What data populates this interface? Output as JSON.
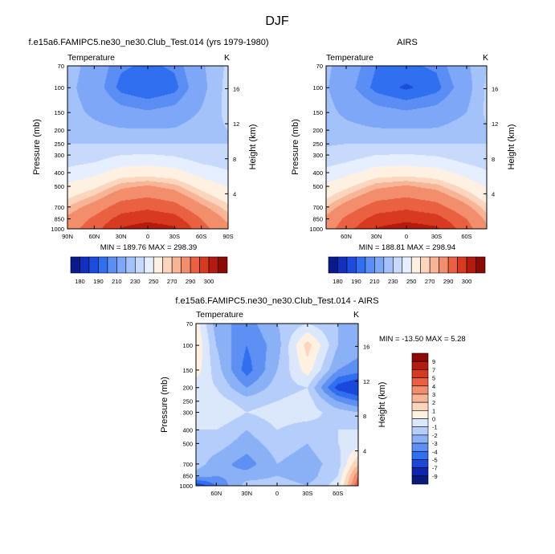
{
  "title": "DJF",
  "panels": [
    {
      "title": "f.e15a6.FAMIPC5.ne30_ne30.Club_Test.014 (yrs 1979-1980)",
      "left_label": "Temperature",
      "units": "K",
      "minmax": "MIN = 189.76  MAX = 298.39"
    },
    {
      "title": "AIRS",
      "left_label": "Temperature",
      "units": "K",
      "minmax": "MIN = 188.81  MAX = 298.94"
    },
    {
      "title": "f.e15a6.FAMIPC5.ne30_ne30.Club_Test.014 - AIRS",
      "left_label": "Temperature",
      "units": "K",
      "minmax": "MIN = -13.50  MAX =   5.28"
    }
  ],
  "chart_data": [
    {
      "type": "heatmap",
      "title": "f.e15a6.FAMIPC5.ne30_ne30.Club_Test.014 (yrs 1979-1980)",
      "variable": "Temperature",
      "units": "K",
      "xlabel": "",
      "ylabel": "Pressure (mb)",
      "y2label": "Height (km)",
      "x_ticks": [
        "90N",
        "60N",
        "30N",
        "0",
        "30S",
        "60S",
        "90S"
      ],
      "y_ticks": [
        "70",
        "100",
        "150",
        "200",
        "250",
        "300",
        "400",
        "500",
        "700",
        "850",
        "1000"
      ],
      "y2_ticks": [
        "4",
        "8",
        "12",
        "16"
      ],
      "ylim": [
        1000,
        70
      ],
      "x": [
        90,
        60,
        30,
        0,
        -30,
        -60,
        -90
      ],
      "y": [
        70,
        100,
        150,
        200,
        250,
        300,
        400,
        500,
        700,
        850,
        1000
      ],
      "z": [
        [
          215,
          205,
          196,
          194,
          196,
          208,
          222
        ],
        [
          213,
          204,
          193,
          190,
          193,
          206,
          224
        ],
        [
          214,
          208,
          203,
          201,
          203,
          211,
          223
        ],
        [
          217,
          213,
          211,
          211,
          211,
          216,
          220
        ],
        [
          220,
          220,
          220,
          220,
          220,
          220,
          220
        ],
        [
          223,
          225,
          230,
          231,
          229,
          224,
          223
        ],
        [
          233,
          237,
          245,
          246,
          244,
          236,
          231
        ],
        [
          242,
          248,
          258,
          261,
          257,
          247,
          239
        ],
        [
          255,
          264,
          275,
          278,
          274,
          262,
          252
        ],
        [
          262,
          272,
          284,
          287,
          284,
          270,
          258
        ],
        [
          265,
          276,
          291,
          296,
          292,
          274,
          262
        ]
      ],
      "min": 189.76,
      "max": 298.39,
      "colorbar": {
        "labels": [
          "180",
          "190",
          "210",
          "230",
          "250",
          "270",
          "290",
          "300"
        ]
      }
    },
    {
      "type": "heatmap",
      "title": "AIRS",
      "variable": "Temperature",
      "units": "K",
      "xlabel": "",
      "ylabel": "Pressure (mb)",
      "y2label": "Height (km)",
      "x_ticks": [
        "60N",
        "30N",
        "0",
        "30S",
        "60S"
      ],
      "y_ticks": [
        "70",
        "100",
        "150",
        "200",
        "250",
        "300",
        "400",
        "500",
        "700",
        "850",
        "1000"
      ],
      "y2_ticks": [
        "4",
        "8",
        "12",
        "16"
      ],
      "ylim": [
        1000,
        70
      ],
      "x": [
        80,
        60,
        30,
        0,
        -30,
        -60,
        -80
      ],
      "y": [
        70,
        100,
        150,
        200,
        250,
        300,
        400,
        500,
        700,
        850,
        1000
      ],
      "z": [
        [
          212,
          205,
          195,
          194,
          196,
          208,
          220
        ],
        [
          211,
          203,
          193,
          189,
          193,
          205,
          222
        ],
        [
          213,
          208,
          203,
          201,
          203,
          210,
          222
        ],
        [
          216,
          213,
          211,
          211,
          211,
          215,
          219
        ],
        [
          219,
          220,
          220,
          220,
          220,
          220,
          220
        ],
        [
          223,
          225,
          230,
          231,
          229,
          224,
          223
        ],
        [
          233,
          237,
          245,
          246,
          244,
          236,
          231
        ],
        [
          242,
          248,
          258,
          261,
          257,
          247,
          239
        ],
        [
          255,
          264,
          275,
          278,
          274,
          262,
          252
        ],
        [
          262,
          272,
          284,
          287,
          284,
          270,
          258
        ],
        [
          265,
          276,
          291,
          296,
          292,
          274,
          262
        ]
      ],
      "min": 188.81,
      "max": 298.94,
      "colorbar": {
        "labels": [
          "180",
          "190",
          "210",
          "230",
          "250",
          "270",
          "290",
          "300"
        ]
      }
    },
    {
      "type": "heatmap",
      "title": "f.e15a6.FAMIPC5.ne30_ne30.Club_Test.014 - AIRS",
      "variable": "Temperature",
      "units": "K",
      "xlabel": "",
      "ylabel": "Pressure (mb)",
      "y2label": "Height (km)",
      "x_ticks": [
        "60N",
        "30N",
        "0",
        "30S",
        "60S"
      ],
      "y_ticks": [
        "70",
        "100",
        "150",
        "200",
        "250",
        "300",
        "400",
        "500",
        "700",
        "850",
        "1000"
      ],
      "y2_ticks": [
        "4",
        "8",
        "12",
        "16"
      ],
      "ylim": [
        1000,
        70
      ],
      "x": [
        80,
        60,
        30,
        0,
        -30,
        -60,
        -80
      ],
      "y": [
        70,
        100,
        150,
        200,
        250,
        300,
        400,
        500,
        700,
        850,
        1000
      ],
      "z": [
        [
          0.5,
          -2.5,
          -3.5,
          -2.0,
          -1.0,
          -2.0,
          -2.0
        ],
        [
          1.0,
          -2.0,
          -4.0,
          -2.5,
          1.5,
          -2.0,
          -2.5
        ],
        [
          0.5,
          -1.5,
          -4.5,
          -2.0,
          0.5,
          -3.0,
          -3.5
        ],
        [
          -0.5,
          -1.0,
          -3.0,
          -1.5,
          -1.0,
          -5.5,
          -6.5
        ],
        [
          -0.5,
          -0.5,
          -1.5,
          -1.0,
          -0.5,
          -3.0,
          -4.0
        ],
        [
          -0.5,
          0.0,
          -1.0,
          -0.5,
          -0.5,
          -1.5,
          -2.0
        ],
        [
          -1.0,
          -1.0,
          -2.0,
          -1.0,
          -1.5,
          -1.0,
          -1.0
        ],
        [
          -1.5,
          -1.5,
          -2.5,
          -1.5,
          -2.0,
          -1.0,
          -0.5
        ],
        [
          -1.5,
          -2.5,
          -3.5,
          -2.0,
          -2.5,
          -1.5,
          2.0
        ],
        [
          -2.5,
          -3.0,
          -2.5,
          -2.0,
          -2.5,
          -1.0,
          4.0
        ],
        [
          -6.0,
          -4.0,
          -1.5,
          -1.5,
          -2.0,
          -0.5,
          5.0
        ]
      ],
      "min": -13.5,
      "max": 5.28,
      "colorbar": {
        "labels": [
          "9",
          "7",
          "5",
          "4",
          "3",
          "2",
          "1",
          "0",
          "-1",
          "-2",
          "-3",
          "-4",
          "-5",
          "-7",
          "-9"
        ]
      }
    }
  ],
  "colors": {
    "temperature_scale": [
      "#0a1a8c",
      "#1230c0",
      "#1c4be0",
      "#2f6ff0",
      "#5a8ef5",
      "#7ea8f7",
      "#a4c2fa",
      "#c7dafc",
      "#e6efff",
      "#fff1e2",
      "#fbd6bd",
      "#f8b596",
      "#f38e6c",
      "#ea6142",
      "#d83a1f",
      "#b51a0e",
      "#8c0a05"
    ],
    "difference_scale": [
      "#8c0a05",
      "#b51a0e",
      "#d83a1f",
      "#ea6142",
      "#f38e6c",
      "#f8b596",
      "#fbd6bd",
      "#fff1e2",
      "#dbe8fc",
      "#b4cdfa",
      "#8ab0f6",
      "#5e8ff2",
      "#2f6ff0",
      "#1a47dc",
      "#0e25b0",
      "#081a7a"
    ]
  }
}
